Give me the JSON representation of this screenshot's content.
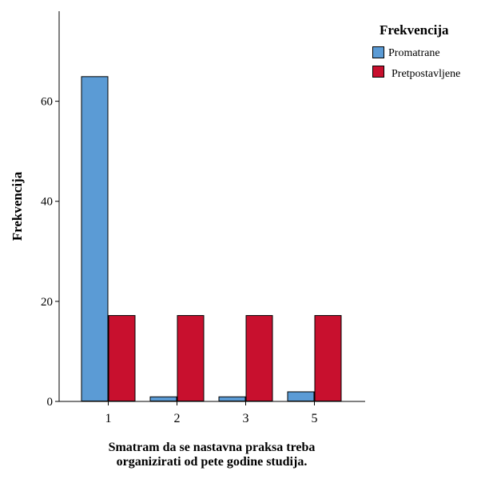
{
  "chart_data": {
    "type": "bar",
    "categories": [
      "1",
      "2",
      "3",
      "5"
    ],
    "series": [
      {
        "name": "Promatrane",
        "values": [
          65,
          1,
          1,
          2
        ],
        "color": "#5b9bd5"
      },
      {
        "name": "Pretpostavljene",
        "values": [
          17.25,
          17.25,
          17.25,
          17.25
        ],
        "color": "#c8102e"
      }
    ],
    "title": "",
    "xlabel_lines": [
      "Smatram da se nastavna praksa treba",
      "organizirati od pete godine studija."
    ],
    "ylabel": "Frekvencija",
    "ylim": [
      0,
      78
    ],
    "yticks": [
      0,
      20,
      40,
      60
    ],
    "legend": {
      "title": "Frekvencija",
      "placement": "top-right"
    },
    "grid": false
  }
}
